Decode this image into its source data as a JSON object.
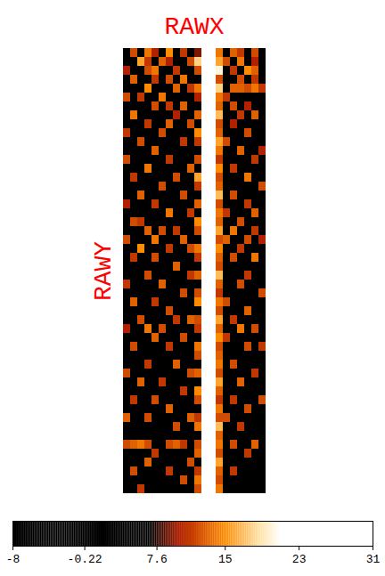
{
  "chart_data": {
    "type": "heatmap",
    "x_label": "RAWX",
    "y_label": "RAWY",
    "tick_labels": false,
    "z": [
      [
        -8,
        12,
        -8,
        14,
        10,
        -8,
        15,
        -8,
        11,
        -8,
        9,
        31,
        31,
        14,
        -8,
        13,
        11,
        -8,
        12,
        -8
      ],
      [
        -8,
        -8,
        16,
        11,
        -8,
        13,
        10,
        -8,
        -8,
        12,
        18,
        31,
        31,
        16,
        12,
        -8,
        14,
        -8,
        10,
        -8
      ],
      [
        10,
        -8,
        -8,
        12,
        14,
        -8,
        -8,
        11,
        -8,
        -8,
        12,
        31,
        31,
        20,
        -8,
        11,
        -8,
        15,
        13,
        -8
      ],
      [
        -8,
        13,
        -8,
        -8,
        11,
        -8,
        12,
        -8,
        14,
        -8,
        -8,
        31,
        31,
        12,
        -8,
        -8,
        12,
        -8,
        11,
        -8
      ],
      [
        -8,
        -8,
        -8,
        15,
        -8,
        -8,
        -8,
        13,
        -8,
        11,
        14,
        31,
        31,
        18,
        -8,
        13,
        13,
        12,
        14,
        11
      ],
      [
        12,
        -8,
        11,
        -8,
        -8,
        14,
        -8,
        -8,
        -8,
        -8,
        10,
        31,
        31,
        14,
        11,
        -8,
        -8,
        -8,
        -8,
        -8
      ],
      [
        -8,
        -8,
        -8,
        -8,
        12,
        -8,
        11,
        -8,
        13,
        -8,
        -8,
        31,
        31,
        13,
        -8,
        12,
        -8,
        10,
        -8,
        -8
      ],
      [
        -8,
        14,
        -8,
        -8,
        -8,
        -8,
        -8,
        10,
        -8,
        -8,
        13,
        31,
        31,
        17,
        -8,
        -8,
        11,
        -8,
        13,
        -8
      ],
      [
        -8,
        -8,
        -8,
        11,
        -8,
        -8,
        13,
        -8,
        -8,
        12,
        -8,
        31,
        31,
        12,
        -8,
        10,
        -8,
        -8,
        -8,
        -8
      ],
      [
        11,
        -8,
        -8,
        -8,
        -8,
        12,
        -8,
        -8,
        -8,
        -8,
        15,
        31,
        31,
        13,
        -8,
        -8,
        -8,
        12,
        -8,
        -8
      ],
      [
        -8,
        -8,
        12,
        -8,
        -8,
        -8,
        -8,
        -8,
        11,
        -8,
        11,
        31,
        31,
        16,
        12,
        -8,
        -8,
        -8,
        -8,
        -8
      ],
      [
        -8,
        -8,
        -8,
        -8,
        13,
        -8,
        -8,
        -8,
        -8,
        -8,
        -8,
        31,
        31,
        14,
        -8,
        -8,
        13,
        -8,
        -8,
        10
      ],
      [
        12,
        -8,
        -8,
        -8,
        -8,
        -8,
        11,
        -8,
        -8,
        -8,
        12,
        31,
        31,
        11,
        -8,
        -8,
        -8,
        -8,
        11,
        -8
      ],
      [
        -8,
        -8,
        -8,
        14,
        -8,
        -8,
        -8,
        -8,
        -8,
        13,
        -8,
        31,
        31,
        15,
        -8,
        11,
        -8,
        -8,
        -8,
        -8
      ],
      [
        -8,
        11,
        -8,
        -8,
        -8,
        -8,
        -8,
        12,
        -8,
        -8,
        16,
        31,
        31,
        12,
        -8,
        -8,
        -8,
        14,
        -8,
        -8
      ],
      [
        -8,
        -8,
        -8,
        -8,
        -8,
        12,
        -8,
        -8,
        -8,
        -8,
        11,
        31,
        31,
        13,
        -8,
        -8,
        -8,
        -8,
        -8,
        12
      ],
      [
        -8,
        -8,
        13,
        -8,
        -8,
        -8,
        -8,
        -8,
        12,
        -8,
        -8,
        31,
        31,
        17,
        -8,
        12,
        -8,
        -8,
        -8,
        -8
      ],
      [
        10,
        -8,
        -8,
        -8,
        11,
        -8,
        -8,
        -8,
        -8,
        -8,
        13,
        31,
        31,
        12,
        -8,
        -8,
        -8,
        11,
        -8,
        -8
      ],
      [
        -8,
        -8,
        -8,
        -8,
        -8,
        -8,
        14,
        -8,
        -8,
        11,
        -8,
        31,
        31,
        14,
        11,
        -8,
        -8,
        -8,
        13,
        -8
      ],
      [
        -8,
        12,
        11,
        -8,
        -8,
        -8,
        -8,
        -8,
        -8,
        -8,
        15,
        31,
        31,
        13,
        -8,
        -8,
        12,
        -8,
        -8,
        -8
      ],
      [
        -8,
        -8,
        -8,
        13,
        -8,
        12,
        -8,
        11,
        -8,
        -8,
        12,
        31,
        31,
        16,
        -8,
        14,
        -8,
        -8,
        11,
        -8
      ],
      [
        12,
        -8,
        -8,
        -8,
        14,
        -8,
        -8,
        -8,
        13,
        -8,
        -8,
        31,
        31,
        12,
        13,
        -8,
        -8,
        12,
        -8,
        10
      ],
      [
        -8,
        -8,
        15,
        -8,
        -8,
        -8,
        11,
        -8,
        -8,
        12,
        14,
        31,
        31,
        15,
        -8,
        -8,
        11,
        -8,
        -8,
        -8
      ],
      [
        -8,
        11,
        -8,
        -8,
        12,
        -8,
        -8,
        -8,
        -8,
        -8,
        11,
        31,
        31,
        13,
        -8,
        12,
        -8,
        -8,
        14,
        -8
      ],
      [
        -8,
        -8,
        -8,
        -8,
        -8,
        -8,
        -8,
        13,
        -8,
        -8,
        -8,
        31,
        31,
        12,
        -8,
        -8,
        -8,
        -8,
        -8,
        -8
      ],
      [
        -8,
        -8,
        -8,
        12,
        -8,
        -8,
        -8,
        -8,
        -8,
        11,
        13,
        31,
        31,
        17,
        -8,
        -8,
        -8,
        11,
        -8,
        -8
      ],
      [
        11,
        -8,
        -8,
        -8,
        -8,
        13,
        -8,
        -8,
        -8,
        -8,
        -8,
        31,
        31,
        13,
        -8,
        -8,
        12,
        -8,
        -8,
        -8
      ],
      [
        -8,
        -8,
        -8,
        -8,
        -8,
        -8,
        -8,
        -8,
        12,
        -8,
        12,
        31,
        31,
        11,
        -8,
        -8,
        -8,
        -8,
        -8,
        12
      ],
      [
        -8,
        13,
        -8,
        -8,
        11,
        -8,
        -8,
        -8,
        -8,
        -8,
        15,
        31,
        31,
        14,
        12,
        -8,
        -8,
        -8,
        -8,
        -8
      ],
      [
        -8,
        -8,
        -8,
        -8,
        -8,
        -8,
        12,
        -8,
        -8,
        -8,
        -8,
        31,
        31,
        12,
        -8,
        -8,
        -8,
        13,
        -8,
        -8
      ],
      [
        -8,
        -8,
        12,
        -8,
        -8,
        -8,
        -8,
        11,
        -8,
        13,
        12,
        31,
        31,
        16,
        -8,
        11,
        -8,
        -8,
        -8,
        -8
      ],
      [
        10,
        -8,
        -8,
        14,
        -8,
        12,
        -8,
        -8,
        -8,
        -8,
        11,
        31,
        31,
        13,
        -8,
        -8,
        14,
        -8,
        12,
        -8
      ],
      [
        -8,
        -8,
        -8,
        -8,
        13,
        -8,
        -8,
        -8,
        12,
        -8,
        -8,
        31,
        31,
        15,
        11,
        -8,
        -8,
        -8,
        -8,
        -8
      ],
      [
        -8,
        12,
        -8,
        -8,
        -8,
        -8,
        11,
        -8,
        -8,
        -8,
        14,
        31,
        31,
        12,
        -8,
        -8,
        -8,
        12,
        -8,
        11
      ],
      [
        -8,
        -8,
        -8,
        -8,
        -8,
        -8,
        -8,
        -8,
        -8,
        -8,
        12,
        31,
        31,
        13,
        -8,
        -8,
        -8,
        -8,
        -8,
        -8
      ],
      [
        -8,
        -8,
        -8,
        11,
        -8,
        -8,
        -8,
        13,
        -8,
        -8,
        -8,
        31,
        31,
        14,
        -8,
        12,
        -8,
        -8,
        -8,
        -8
      ],
      [
        12,
        -8,
        -8,
        -8,
        -8,
        -8,
        -8,
        -8,
        -8,
        12,
        13,
        31,
        31,
        12,
        -8,
        -8,
        -8,
        -8,
        11,
        -8
      ],
      [
        -8,
        -8,
        13,
        -8,
        -8,
        11,
        -8,
        -8,
        -8,
        -8,
        -8,
        31,
        31,
        16,
        -8,
        -8,
        13,
        -8,
        -8,
        -8
      ],
      [
        -8,
        -8,
        -8,
        -8,
        -8,
        -8,
        -8,
        -8,
        11,
        -8,
        15,
        31,
        31,
        13,
        -8,
        -8,
        -8,
        -8,
        -8,
        -8
      ],
      [
        -8,
        11,
        -8,
        -8,
        12,
        -8,
        -8,
        -8,
        -8,
        -8,
        12,
        31,
        31,
        11,
        -8,
        11,
        -8,
        -8,
        -8,
        12
      ],
      [
        -8,
        -8,
        -8,
        -8,
        -8,
        -8,
        13,
        -8,
        -8,
        -8,
        -8,
        31,
        31,
        14,
        -8,
        -8,
        -8,
        12,
        -8,
        -8
      ],
      [
        13,
        -8,
        -8,
        12,
        -8,
        -8,
        -8,
        -8,
        -8,
        13,
        11,
        31,
        31,
        12,
        12,
        -8,
        -8,
        -8,
        -8,
        -8
      ],
      [
        -8,
        -8,
        -8,
        -8,
        -8,
        -8,
        -8,
        12,
        -8,
        -8,
        14,
        31,
        31,
        17,
        -8,
        -8,
        11,
        -8,
        -8,
        -8
      ],
      [
        -8,
        -8,
        -8,
        -8,
        -8,
        -8,
        -8,
        -8,
        -8,
        -8,
        -8,
        31,
        31,
        13,
        -8,
        -8,
        -8,
        -8,
        -8,
        -8
      ],
      [
        12,
        13,
        14,
        12,
        -8,
        -8,
        12,
        13,
        11,
        -8,
        12,
        31,
        31,
        14,
        -8,
        12,
        -8,
        -8,
        13,
        -8
      ],
      [
        -8,
        -8,
        -8,
        -8,
        11,
        -8,
        -8,
        -8,
        -8,
        -8,
        13,
        31,
        31,
        12,
        -8,
        -8,
        -8,
        11,
        -8,
        -8
      ],
      [
        -8,
        -8,
        -8,
        13,
        -8,
        -8,
        -8,
        -8,
        -8,
        12,
        -8,
        31,
        31,
        16,
        -8,
        -8,
        -8,
        -8,
        -8,
        -8
      ],
      [
        -8,
        12,
        -8,
        -8,
        -8,
        -8,
        11,
        -8,
        -8,
        -8,
        11,
        31,
        31,
        13,
        -8,
        11,
        -8,
        -8,
        -8,
        -8
      ],
      [
        -8,
        -8,
        -8,
        -8,
        -8,
        -8,
        -8,
        -8,
        12,
        -8,
        14,
        31,
        31,
        12,
        -8,
        -8,
        -8,
        -8,
        -8,
        -8
      ],
      [
        -8,
        -8,
        11,
        -8,
        -8,
        -8,
        -8,
        -8,
        -8,
        -8,
        12,
        31,
        31,
        14,
        -8,
        -8,
        -8,
        -8,
        -8,
        -8
      ]
    ],
    "colorbar": {
      "range": [
        -8,
        31
      ],
      "ticks": [
        -8,
        -0.22,
        7.6,
        15,
        23,
        31
      ]
    }
  }
}
